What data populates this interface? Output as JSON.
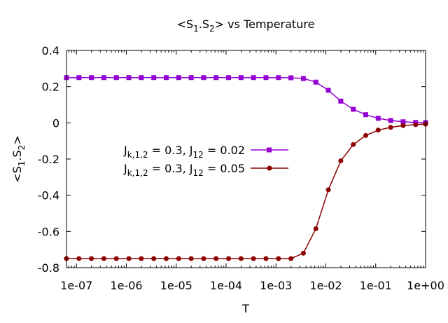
{
  "chart_data": {
    "type": "line",
    "title": {
      "pre": "<S",
      "s1": "1",
      "mid": ".S",
      "s2": "2",
      "post": "> vs Temperature"
    },
    "xlabel": "T",
    "ylabel": {
      "pre": "<S",
      "s1": "1",
      "mid": ".S",
      "s2": "2",
      "post": ">"
    },
    "xscale": "log",
    "xlim_exp": [
      -7.2,
      0
    ],
    "ylim": [
      -0.8,
      0.4
    ],
    "x_ticks": [
      "1e-07",
      "1e-06",
      "1e-05",
      "1e-04",
      "1e-03",
      "1e-02",
      "1e-01",
      "1e+00"
    ],
    "y_ticks": [
      "0.4",
      "0.2",
      "0",
      "-0.2",
      "-0.4",
      "-0.6",
      "-0.8"
    ],
    "legend_position": "center-left",
    "series": [
      {
        "name": "J_{k,1,2} = 0.3, J_{12} = 0.02",
        "label": {
          "j": "J",
          "jsub": "k,1,2",
          "mid": " = 0.3, J",
          "sub2": "12",
          "post": " = 0.02"
        },
        "color": "#9400d3",
        "marker": "square",
        "log10_T": [
          -7.2,
          -6.95,
          -6.7,
          -6.45,
          -6.2,
          -5.95,
          -5.7,
          -5.45,
          -5.2,
          -4.95,
          -4.7,
          -4.45,
          -4.2,
          -3.95,
          -3.7,
          -3.45,
          -3.2,
          -2.95,
          -2.7,
          -2.45,
          -2.2,
          -1.95,
          -1.7,
          -1.45,
          -1.2,
          -0.95,
          -0.7,
          -0.45,
          -0.2,
          0.0
        ],
        "values": [
          0.25,
          0.25,
          0.25,
          0.25,
          0.25,
          0.25,
          0.25,
          0.25,
          0.25,
          0.25,
          0.25,
          0.25,
          0.25,
          0.25,
          0.25,
          0.25,
          0.25,
          0.25,
          0.249,
          0.245,
          0.225,
          0.18,
          0.12,
          0.075,
          0.045,
          0.025,
          0.013,
          0.006,
          0.002,
          0.001
        ]
      },
      {
        "name": "J_{k,1,2} = 0.3, J_{12} = 0.05",
        "label": {
          "j": "J",
          "jsub": "k,1,2",
          "mid": " = 0.3, J",
          "sub2": "12",
          "post": " = 0.05"
        },
        "color": "#8b0000",
        "marker": "circle",
        "log10_T": [
          -7.2,
          -6.95,
          -6.7,
          -6.45,
          -6.2,
          -5.95,
          -5.7,
          -5.45,
          -5.2,
          -4.95,
          -4.7,
          -4.45,
          -4.2,
          -3.95,
          -3.7,
          -3.45,
          -3.2,
          -2.95,
          -2.7,
          -2.45,
          -2.2,
          -1.95,
          -1.7,
          -1.45,
          -1.2,
          -0.95,
          -0.7,
          -0.45,
          -0.2,
          0.0
        ],
        "values": [
          -0.75,
          -0.75,
          -0.75,
          -0.75,
          -0.75,
          -0.75,
          -0.75,
          -0.75,
          -0.75,
          -0.75,
          -0.75,
          -0.75,
          -0.75,
          -0.75,
          -0.75,
          -0.75,
          -0.75,
          -0.75,
          -0.75,
          -0.72,
          -0.585,
          -0.37,
          -0.21,
          -0.12,
          -0.07,
          -0.04,
          -0.025,
          -0.015,
          -0.01,
          -0.007
        ]
      }
    ]
  }
}
